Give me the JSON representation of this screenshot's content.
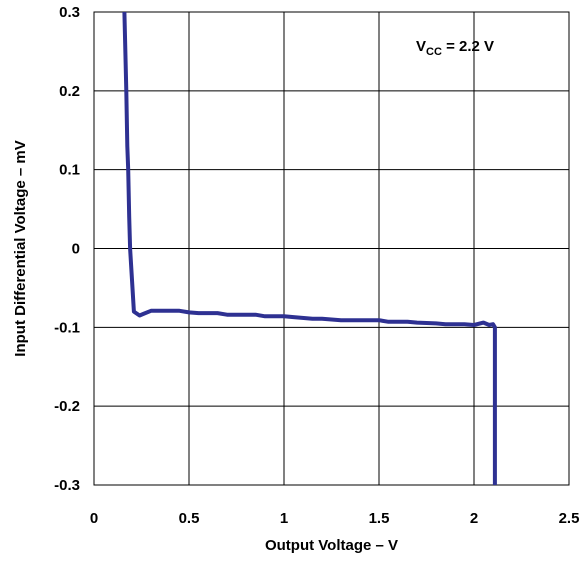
{
  "chart_data": {
    "type": "line",
    "xlabel": "Output Voltage – V",
    "ylabel": "Input Differential Voltage – mV",
    "xlim": [
      0,
      2.5
    ],
    "ylim": [
      -0.3,
      0.3
    ],
    "x_ticks": [
      "0",
      "0.5",
      "1",
      "1.5",
      "2",
      "2.5"
    ],
    "y_ticks": [
      "0.3",
      "0.2",
      "0.1",
      "0",
      "-0.1",
      "-0.2",
      "-0.3"
    ],
    "grid": true,
    "annotation": {
      "prefix": "V",
      "subscript": "CC",
      "suffix": " = 2.2 V"
    },
    "line_color": "#2e3192",
    "series": [
      {
        "x": [
          0.16,
          0.17,
          0.175,
          0.18,
          0.185,
          0.19,
          0.2,
          0.21,
          0.24,
          0.26,
          0.3,
          0.45,
          0.5,
          0.55,
          0.65,
          0.7,
          0.85,
          0.9,
          1.0,
          1.05,
          1.15,
          1.2,
          1.3,
          1.35,
          1.5,
          1.55,
          1.65,
          1.7,
          1.8,
          1.85,
          1.92,
          1.95,
          2.0,
          2.05,
          2.08,
          2.1,
          2.11,
          2.11
        ],
        "y": [
          0.3,
          0.2,
          0.13,
          0.1,
          0.04,
          0.0,
          -0.04,
          -0.08,
          -0.085,
          -0.083,
          -0.079,
          -0.079,
          -0.081,
          -0.082,
          -0.082,
          -0.084,
          -0.084,
          -0.086,
          -0.086,
          -0.087,
          -0.089,
          -0.089,
          -0.091,
          -0.091,
          -0.091,
          -0.093,
          -0.093,
          -0.094,
          -0.095,
          -0.096,
          -0.096,
          -0.096,
          -0.097,
          -0.094,
          -0.097,
          -0.096,
          -0.1,
          -0.3
        ]
      }
    ]
  }
}
